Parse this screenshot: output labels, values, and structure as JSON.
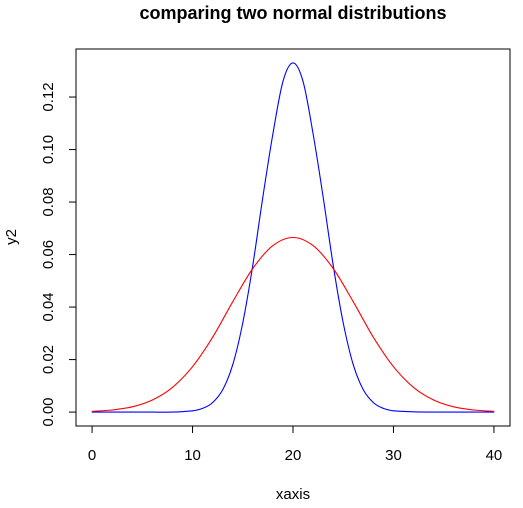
{
  "chart_data": {
    "type": "line",
    "title": "comparing two normal distributions",
    "xlabel": "xaxis",
    "ylabel": "y2",
    "xlim": [
      -1.6,
      41.6
    ],
    "ylim": [
      -0.0053,
      0.1383
    ],
    "x_ticks": [
      0,
      10,
      20,
      30,
      40
    ],
    "x_tick_labels": [
      "0",
      "10",
      "20",
      "30",
      "40"
    ],
    "y_ticks": [
      0.0,
      0.02,
      0.04,
      0.06,
      0.08,
      0.1,
      0.12
    ],
    "y_tick_labels": [
      "0.00",
      "0.02",
      "0.04",
      "0.06",
      "0.08",
      "0.10",
      "0.12"
    ],
    "grid": false,
    "legend": "none",
    "series": [
      {
        "color": "#0000ff",
        "x": [
          0,
          2,
          4,
          6,
          8,
          10,
          11,
          12,
          13,
          14,
          15,
          16,
          17,
          18,
          19,
          20,
          21,
          22,
          23,
          24,
          25,
          26,
          27,
          28,
          29,
          30,
          32,
          34,
          36,
          38,
          40
        ],
        "y": [
          0.0,
          0.0,
          0.0,
          0.0,
          0.0,
          0.0005,
          0.0014,
          0.0036,
          0.0085,
          0.018,
          0.034,
          0.056,
          0.082,
          0.106,
          0.126,
          0.133,
          0.126,
          0.106,
          0.082,
          0.056,
          0.034,
          0.018,
          0.0085,
          0.0036,
          0.0014,
          0.0005,
          0.0001,
          0.0,
          0.0,
          0.0,
          0.0
        ]
      },
      {
        "color": "#ff0000",
        "x": [
          0,
          2,
          4,
          6,
          8,
          10,
          12,
          14,
          16,
          18,
          20,
          22,
          24,
          26,
          28,
          30,
          32,
          34,
          36,
          38,
          40
        ],
        "y": [
          0.0003,
          0.0008,
          0.002,
          0.0046,
          0.0094,
          0.0173,
          0.0285,
          0.042,
          0.0547,
          0.0634,
          0.0665,
          0.0634,
          0.0547,
          0.042,
          0.0285,
          0.0173,
          0.0094,
          0.0046,
          0.002,
          0.0008,
          0.0003
        ]
      }
    ]
  }
}
